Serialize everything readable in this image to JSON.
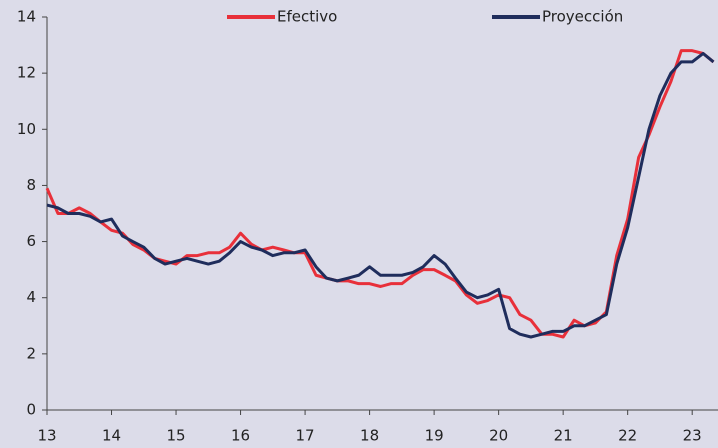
{
  "chart_data": {
    "type": "line",
    "x": [
      13,
      13.17,
      13.33,
      13.5,
      13.67,
      13.83,
      14,
      14.17,
      14.33,
      14.5,
      14.67,
      14.83,
      15,
      15.17,
      15.33,
      15.5,
      15.67,
      15.83,
      16,
      16.17,
      16.33,
      16.5,
      16.67,
      16.83,
      17,
      17.17,
      17.33,
      17.5,
      17.67,
      17.83,
      18,
      18.17,
      18.33,
      18.5,
      18.67,
      18.83,
      19,
      19.17,
      19.33,
      19.5,
      19.67,
      19.83,
      20,
      20.17,
      20.33,
      20.5,
      20.67,
      20.83,
      21,
      21.17,
      21.33,
      21.5,
      21.67,
      21.83,
      22,
      22.17,
      22.33,
      22.5,
      22.67,
      22.83,
      23,
      23.17,
      23.33
    ],
    "series": [
      {
        "name": "Efectivo",
        "color": "#e8303a",
        "values": [
          7.9,
          7.0,
          7.0,
          7.2,
          7.0,
          6.7,
          6.4,
          6.3,
          5.9,
          5.7,
          5.4,
          5.3,
          5.2,
          5.5,
          5.5,
          5.6,
          5.6,
          5.8,
          6.3,
          5.9,
          5.7,
          5.8,
          5.7,
          5.6,
          5.6,
          4.8,
          4.7,
          4.6,
          4.6,
          4.5,
          4.5,
          4.4,
          4.5,
          4.5,
          4.8,
          5.0,
          5.0,
          4.8,
          4.6,
          4.1,
          3.8,
          3.9,
          4.1,
          4.0,
          3.4,
          3.2,
          2.7,
          2.7,
          2.6,
          3.2,
          3.0,
          3.1,
          3.5,
          5.5,
          6.8,
          9.0,
          9.8,
          10.8,
          11.7,
          12.8,
          12.8,
          12.7,
          12.4
        ]
      },
      {
        "name": "Proyección",
        "color": "#1f2d5c",
        "values": [
          7.3,
          7.2,
          7.0,
          7.0,
          6.9,
          6.7,
          6.8,
          6.2,
          6.0,
          5.8,
          5.4,
          5.2,
          5.3,
          5.4,
          5.3,
          5.2,
          5.3,
          5.6,
          6.0,
          5.8,
          5.7,
          5.5,
          5.6,
          5.6,
          5.7,
          5.1,
          4.7,
          4.6,
          4.7,
          4.8,
          5.1,
          4.8,
          4.8,
          4.8,
          4.9,
          5.1,
          5.5,
          5.2,
          4.7,
          4.2,
          4.0,
          4.1,
          4.3,
          2.9,
          2.7,
          2.6,
          2.7,
          2.8,
          2.8,
          3.0,
          3.0,
          3.2,
          3.4,
          5.2,
          6.5,
          8.3,
          10.0,
          11.2,
          12.0,
          12.4,
          12.4,
          12.7,
          12.4
        ]
      }
    ],
    "xlim": [
      13,
      23.4
    ],
    "xticks": [
      13,
      14,
      15,
      16,
      17,
      18,
      19,
      20,
      21,
      22,
      23
    ],
    "ylim": [
      0,
      14
    ],
    "yticks": [
      0,
      2,
      4,
      6,
      8,
      10,
      12,
      14
    ],
    "legend": "top"
  }
}
